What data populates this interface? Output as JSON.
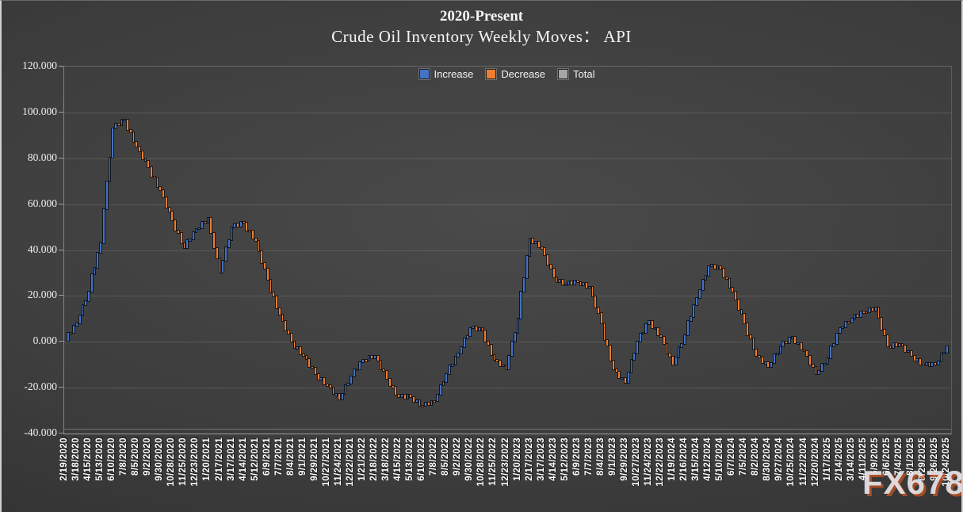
{
  "chart_data": {
    "type": "bar",
    "subtype": "waterfall-cumulative-weekly",
    "title": "2020-Present",
    "subtitle": "Crude Oil Inventory Weekly Moves： API",
    "legend": [
      {
        "label": "Increase",
        "color": "#4472C4"
      },
      {
        "label": "Decrease",
        "color": "#ED7D31"
      },
      {
        "label": "Total",
        "color": "#A5A5A5"
      }
    ],
    "legend_position": "top-center",
    "grid": "horizontal",
    "ylim": [
      -40,
      120
    ],
    "y_ticks": [
      "120.000",
      "100.000",
      "80.000",
      "60.000",
      "40.000",
      "20.000",
      "0.000",
      "-20.000",
      "-40.000"
    ],
    "points_per_interval": 4,
    "categories": [
      "2/19/2020",
      "3/18/2020",
      "4/15/2020",
      "5/13/2020",
      "6/10/2020",
      "7/8/2020",
      "8/5/2020",
      "9/2/2020",
      "9/30/2020",
      "10/28/2020",
      "11/25/2020",
      "12/23/2020",
      "1/20/2021",
      "2/17/2021",
      "3/17/2021",
      "4/14/2021",
      "5/12/2021",
      "6/9/2021",
      "7/7/2021",
      "8/4/2021",
      "9/1/2021",
      "9/29/2021",
      "10/27/2021",
      "11/24/2021",
      "12/22/2021",
      "1/21/2022",
      "2/18/2022",
      "3/18/2022",
      "4/15/2022",
      "5/13/2022",
      "6/10/2022",
      "7/8/2022",
      "8/5/2022",
      "9/2/2022",
      "9/30/2022",
      "10/28/2022",
      "11/25/2022",
      "12/23/2022",
      "1/20/2023",
      "2/17/2023",
      "3/17/2023",
      "4/14/2023",
      "5/12/2023",
      "6/9/2023",
      "7/7/2023",
      "8/4/2023",
      "9/1/2023",
      "9/29/2023",
      "10/27/2023",
      "11/24/2023",
      "12/22/2023",
      "1/19/2024",
      "2/16/2024",
      "3/15/2024",
      "4/12/2024",
      "5/10/2024",
      "6/7/2024",
      "7/5/2024",
      "8/2/2024",
      "8/30/2024",
      "9/27/2024",
      "10/25/2024",
      "11/22/2024",
      "12/20/2024",
      "1/17/2025",
      "2/14/2025",
      "3/14/2025",
      "4/11/2025",
      "5/9/2025",
      "6/6/2025",
      "7/4/2025",
      "8/1/2025",
      "8/29/2025",
      "9/26/2025",
      "10/24/2025"
    ],
    "cumulative_levels": [
      0.5,
      8,
      22,
      43,
      93,
      97,
      85,
      76,
      66,
      53,
      41,
      49,
      54,
      30,
      50,
      52,
      44,
      27,
      12,
      0,
      -6,
      -14,
      -19,
      -25,
      -15,
      -8,
      -6,
      -16,
      -24,
      -24,
      -28,
      -26,
      -14,
      -5,
      6,
      5,
      -8,
      -12,
      10,
      45,
      41,
      28,
      25,
      26,
      24,
      8,
      -12,
      -18,
      0,
      9,
      2,
      -10,
      3,
      19,
      33,
      32,
      22,
      8,
      -6,
      -11,
      -2,
      2,
      -4,
      -14,
      -7,
      6,
      10,
      13,
      15,
      -2,
      -1,
      -6,
      -10,
      -10,
      -2
    ]
  },
  "watermark": {
    "text": "FX678"
  }
}
